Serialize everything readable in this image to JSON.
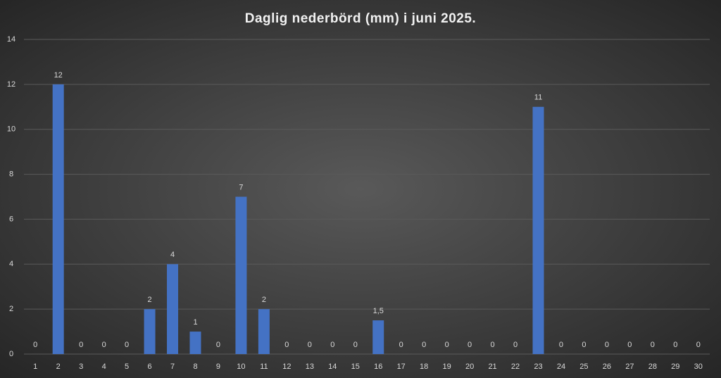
{
  "chart_data": {
    "type": "bar",
    "title": "Daglig nederbörd (mm) i juni 2025.",
    "categories": [
      "1",
      "2",
      "3",
      "4",
      "5",
      "6",
      "7",
      "8",
      "9",
      "10",
      "11",
      "12",
      "13",
      "14",
      "15",
      "16",
      "17",
      "18",
      "19",
      "20",
      "21",
      "22",
      "23",
      "24",
      "25",
      "26",
      "27",
      "28",
      "29",
      "30"
    ],
    "values": [
      0,
      12,
      0,
      0,
      0,
      2,
      4,
      1,
      0,
      7,
      2,
      0,
      0,
      0,
      0,
      1.5,
      0,
      0,
      0,
      0,
      0,
      0,
      11,
      0,
      0,
      0,
      0,
      0,
      0,
      0
    ],
    "value_labels": [
      "0",
      "12",
      "0",
      "0",
      "0",
      "2",
      "4",
      "1",
      "0",
      "7",
      "2",
      "0",
      "0",
      "0",
      "0",
      "1,5",
      "0",
      "0",
      "0",
      "0",
      "0",
      "0",
      "11",
      "0",
      "0",
      "0",
      "0",
      "0",
      "0",
      "0"
    ],
    "color": "#4472c4",
    "ylim": [
      0,
      14
    ],
    "yticks": [
      0,
      2,
      4,
      6,
      8,
      10,
      12,
      14
    ],
    "grid": true
  }
}
